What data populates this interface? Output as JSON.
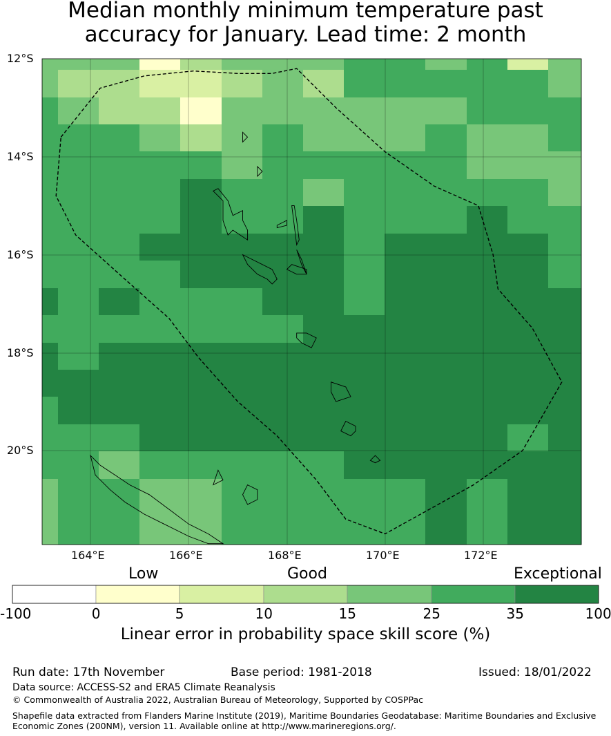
{
  "title": {
    "line1": "Median monthly minimum temperature past",
    "line2": "accuracy for January. Lead time: 2 month"
  },
  "map": {
    "lon_range": [
      163.0,
      174.0
    ],
    "lat_range": [
      -21.9,
      -12.0
    ],
    "cell_lon_step": 0.85,
    "cell_lat_step": 0.8,
    "lon_ticks": [
      {
        "value": 164,
        "label": "164°E"
      },
      {
        "value": 166,
        "label": "166°E"
      },
      {
        "value": 168,
        "label": "168°E"
      },
      {
        "value": 170,
        "label": "170°E"
      },
      {
        "value": 172,
        "label": "172°E"
      }
    ],
    "lat_ticks": [
      {
        "value": -12,
        "label": "12°S"
      },
      {
        "value": -14,
        "label": "14°S"
      },
      {
        "value": -16,
        "label": "16°S"
      },
      {
        "value": -18,
        "label": "18°S"
      },
      {
        "value": -20,
        "label": "20°S"
      }
    ],
    "grid_levels": [
      [
        4,
        4,
        4,
        1,
        3,
        4,
        4,
        4,
        5,
        5,
        4,
        5,
        2,
        4
      ],
      [
        4,
        3,
        3,
        2,
        2,
        3,
        4,
        3,
        5,
        5,
        5,
        5,
        5,
        4
      ],
      [
        5,
        4,
        3,
        3,
        1,
        4,
        4,
        4,
        4,
        4,
        4,
        5,
        5,
        5
      ],
      [
        5,
        5,
        5,
        4,
        3,
        4,
        5,
        4,
        4,
        4,
        5,
        4,
        4,
        5
      ],
      [
        5,
        5,
        5,
        5,
        5,
        4,
        5,
        5,
        5,
        5,
        5,
        4,
        4,
        4
      ],
      [
        5,
        5,
        5,
        5,
        6,
        5,
        5,
        4,
        5,
        5,
        5,
        5,
        5,
        4
      ],
      [
        5,
        5,
        5,
        5,
        6,
        5,
        5,
        6,
        5,
        5,
        5,
        6,
        5,
        5
      ],
      [
        5,
        5,
        5,
        6,
        6,
        6,
        6,
        6,
        5,
        6,
        6,
        6,
        6,
        5
      ],
      [
        5,
        5,
        5,
        5,
        6,
        6,
        6,
        6,
        5,
        6,
        6,
        6,
        6,
        5
      ],
      [
        6,
        5,
        6,
        5,
        5,
        5,
        6,
        6,
        5,
        6,
        6,
        6,
        6,
        6
      ],
      [
        5,
        5,
        5,
        5,
        5,
        5,
        5,
        6,
        6,
        6,
        6,
        6,
        6,
        6
      ],
      [
        6,
        5,
        6,
        6,
        6,
        6,
        6,
        6,
        6,
        6,
        6,
        6,
        6,
        6
      ],
      [
        6,
        6,
        6,
        6,
        6,
        6,
        6,
        6,
        6,
        6,
        6,
        6,
        6,
        6
      ],
      [
        5,
        6,
        6,
        6,
        6,
        6,
        6,
        6,
        6,
        6,
        6,
        6,
        6,
        6
      ],
      [
        5,
        5,
        5,
        6,
        6,
        6,
        6,
        6,
        6,
        6,
        6,
        6,
        5,
        6
      ],
      [
        5,
        5,
        4,
        5,
        5,
        5,
        5,
        5,
        6,
        6,
        6,
        6,
        6,
        6
      ],
      [
        4,
        5,
        5,
        4,
        4,
        5,
        5,
        5,
        5,
        5,
        6,
        5,
        6,
        6
      ]
    ],
    "eez_boundary": [
      [
        163.4,
        -13.6
      ],
      [
        164.2,
        -12.6
      ],
      [
        165.1,
        -12.35
      ],
      [
        166.1,
        -12.25
      ],
      [
        167.0,
        -12.3
      ],
      [
        167.7,
        -12.3
      ],
      [
        168.2,
        -12.2
      ],
      [
        169.0,
        -13.0
      ],
      [
        170.0,
        -13.9
      ],
      [
        171.0,
        -14.6
      ],
      [
        171.9,
        -15.0
      ],
      [
        172.2,
        -16.0
      ],
      [
        172.3,
        -16.7
      ],
      [
        173.0,
        -17.5
      ],
      [
        173.6,
        -18.6
      ],
      [
        172.8,
        -20.0
      ],
      [
        171.8,
        -20.7
      ],
      [
        170.0,
        -21.7
      ],
      [
        169.2,
        -21.4
      ],
      [
        168.6,
        -20.6
      ],
      [
        167.8,
        -19.7
      ],
      [
        167.0,
        -19.0
      ],
      [
        166.2,
        -18.1
      ],
      [
        165.6,
        -17.3
      ],
      [
        164.7,
        -16.5
      ],
      [
        163.7,
        -15.6
      ],
      [
        163.3,
        -14.8
      ],
      [
        163.4,
        -13.6
      ]
    ],
    "islands": [
      [
        [
          166.5,
          -14.7
        ],
        [
          166.7,
          -14.9
        ],
        [
          166.7,
          -15.3
        ],
        [
          166.8,
          -15.6
        ],
        [
          166.9,
          -15.5
        ],
        [
          167.2,
          -15.7
        ],
        [
          167.2,
          -15.5
        ],
        [
          167.1,
          -15.3
        ],
        [
          167.1,
          -15.1
        ],
        [
          166.9,
          -15.2
        ],
        [
          166.8,
          -14.9
        ],
        [
          166.6,
          -14.65
        ]
      ],
      [
        [
          167.1,
          -16.0
        ],
        [
          167.3,
          -16.1
        ],
        [
          167.5,
          -16.2
        ],
        [
          167.7,
          -16.3
        ],
        [
          167.8,
          -16.5
        ],
        [
          167.7,
          -16.6
        ],
        [
          167.6,
          -16.5
        ],
        [
          167.4,
          -16.4
        ],
        [
          167.2,
          -16.2
        ]
      ],
      [
        [
          168.4,
          -16.3
        ],
        [
          168.1,
          -16.2
        ],
        [
          168.0,
          -16.3
        ],
        [
          168.2,
          -16.4
        ],
        [
          168.4,
          -16.4
        ]
      ],
      [
        [
          167.8,
          -15.4
        ],
        [
          168.0,
          -15.3
        ],
        [
          168.0,
          -15.4
        ],
        [
          167.8,
          -15.45
        ]
      ],
      [
        [
          168.1,
          -15.0
        ],
        [
          168.15,
          -15.4
        ],
        [
          168.2,
          -15.8
        ],
        [
          168.25,
          -15.7
        ],
        [
          168.2,
          -15.3
        ],
        [
          168.15,
          -15.0
        ]
      ],
      [
        [
          168.2,
          -15.9
        ],
        [
          168.3,
          -16.1
        ],
        [
          168.4,
          -16.4
        ],
        [
          168.3,
          -16.2
        ]
      ],
      [
        [
          168.2,
          -17.6
        ],
        [
          168.4,
          -17.6
        ],
        [
          168.6,
          -17.7
        ],
        [
          168.5,
          -17.9
        ],
        [
          168.3,
          -17.8
        ],
        [
          168.2,
          -17.7
        ]
      ],
      [
        [
          168.9,
          -18.6
        ],
        [
          169.2,
          -18.7
        ],
        [
          169.3,
          -18.9
        ],
        [
          169.0,
          -19.0
        ],
        [
          168.9,
          -18.8
        ]
      ],
      [
        [
          169.2,
          -19.4
        ],
        [
          169.4,
          -19.5
        ],
        [
          169.4,
          -19.6
        ],
        [
          169.3,
          -19.7
        ],
        [
          169.1,
          -19.6
        ]
      ],
      [
        [
          169.8,
          -20.1
        ],
        [
          169.9,
          -20.2
        ],
        [
          169.8,
          -20.25
        ],
        [
          169.7,
          -20.2
        ]
      ],
      [
        [
          167.1,
          -13.5
        ],
        [
          167.2,
          -13.6
        ],
        [
          167.1,
          -13.7
        ]
      ],
      [
        [
          167.4,
          -14.2
        ],
        [
          167.5,
          -14.3
        ],
        [
          167.4,
          -14.4
        ]
      ],
      [
        [
          166.6,
          -20.4
        ],
        [
          166.7,
          -20.6
        ],
        [
          166.5,
          -20.7
        ]
      ],
      [
        [
          167.2,
          -20.7
        ],
        [
          167.4,
          -20.8
        ],
        [
          167.4,
          -21.0
        ],
        [
          167.2,
          -21.1
        ],
        [
          167.1,
          -20.9
        ]
      ]
    ],
    "grande_terre": [
      [
        164.0,
        -20.1
      ],
      [
        164.2,
        -20.3
      ],
      [
        164.5,
        -20.5
      ],
      [
        164.8,
        -20.7
      ],
      [
        165.2,
        -20.9
      ],
      [
        165.6,
        -21.2
      ],
      [
        166.0,
        -21.5
      ],
      [
        166.4,
        -21.7
      ],
      [
        166.7,
        -21.9
      ],
      [
        166.4,
        -21.9
      ],
      [
        166.0,
        -21.75
      ],
      [
        165.5,
        -21.5
      ],
      [
        165.1,
        -21.3
      ],
      [
        164.7,
        -21.05
      ],
      [
        164.4,
        -20.8
      ],
      [
        164.1,
        -20.5
      ]
    ],
    "cell_colors": [
      "#ffffff",
      "#ffffcc",
      "#d9f0a3",
      "#addd8e",
      "#78c679",
      "#41ab5d",
      "#238443"
    ]
  },
  "colorbar": {
    "categories": [
      "Low",
      "Good",
      "Exceptional"
    ],
    "ticks": [
      "-100",
      "0",
      "5",
      "10",
      "15",
      "25",
      "35",
      "100"
    ],
    "colors": [
      "#ffffff",
      "#ffffcc",
      "#d9f0a3",
      "#addd8e",
      "#78c679",
      "#41ab5d",
      "#238443"
    ],
    "label": "Linear error in probability space skill score (%)"
  },
  "footer": {
    "run_date": "Run date: 17th November",
    "base_period": "Base period: 1981-2018",
    "issued": "Issued: 18/01/2022",
    "data_source": "Data source: ACCESS-S2 and ERA5 Climate Reanalysis",
    "copyright": "© Commonwealth of Australia 2022, Australian Bureau of Meteorology, Supported by COSPPac",
    "shapefile1": "Shapefile data extracted from Flanders Marine Institute (2019), Maritime Boundaries Geodatabase: Maritime Boundaries and Exclusive",
    "shapefile2": "Economic Zones (200NM), version 11. Available online at http://www.marineregions.org/."
  }
}
